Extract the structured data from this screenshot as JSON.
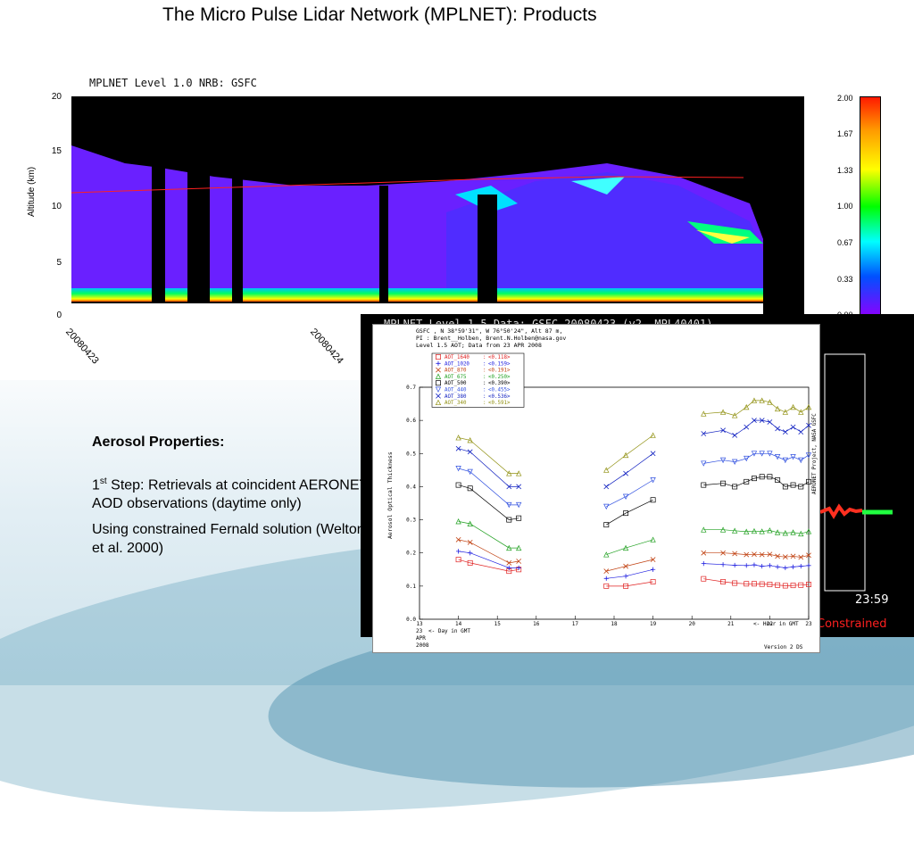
{
  "slide": {
    "title": "The Micro Pulse Lidar Network (MPLNET): Products",
    "bullets": {
      "heading": "Aerosol Properties:",
      "step_num": "1",
      "step_sup": "st",
      "step_text": "Step: Retrievals at coincident AERONET AOD observations (daytime only)",
      "method_text": "Using constrained Fernald solution (Welton et al. 2000)"
    }
  },
  "nrb_figure": {
    "heading": "MPLNET Level 1.0 NRB: GSFC",
    "ylabel": "Altitude (km)",
    "yticks": [
      "20",
      "15",
      "10",
      "5",
      "0"
    ],
    "xdates": [
      "20080423",
      "20080424"
    ],
    "colorbar_ticks": [
      "2.00",
      "1.67",
      "1.33",
      "1.00",
      "0.67",
      "0.33",
      "0.00"
    ]
  },
  "level15_panel": {
    "heading": "MPLNET Level 1.5 Data: GSFC 20080423 (v2, MPL40401)",
    "time_label": "23:59",
    "constrained_label": "Constrained"
  },
  "chart_data": {
    "type": "line",
    "header_lines": [
      "GSFC , N 38°59'31\", W 76°50'24\", Alt 87 m,",
      "PI : Brent__Holben, Brent.N.Holben@nasa.gov",
      "Level 1.5 AOT; Data from 23 APR 2008"
    ],
    "ylabel": "Aerosol Optical Thickness",
    "xlabel": "<- Hour in GMT",
    "day_label": "<- Day in GMT",
    "day_lines": [
      "23",
      "APR",
      "2008"
    ],
    "right_label": "AERONET Project, NASA GSFC",
    "version_label": "Version 2 DS",
    "ylim": [
      0,
      0.7
    ],
    "yticks": [
      "0.0",
      "0.1",
      "0.2",
      "0.3",
      "0.4",
      "0.5",
      "0.6",
      "0.7"
    ],
    "xlim": [
      13,
      23
    ],
    "xticks": [
      "13",
      "14",
      "15",
      "16",
      "17",
      "18",
      "19",
      "20",
      "21",
      "22",
      "23"
    ],
    "series": [
      {
        "name": "AOT_1640",
        "mean": "<0.118>",
        "color": "#e02020",
        "marker": "square",
        "segments": [
          [
            [
              14,
              0.18
            ],
            [
              14.3,
              0.17
            ],
            [
              15.3,
              0.145
            ],
            [
              15.55,
              0.15
            ]
          ],
          [
            [
              17.8,
              0.1
            ],
            [
              18.3,
              0.1
            ],
            [
              19,
              0.113
            ]
          ],
          [
            [
              20.3,
              0.122
            ],
            [
              20.8,
              0.113
            ],
            [
              21.1,
              0.109
            ],
            [
              21.4,
              0.107
            ],
            [
              21.6,
              0.107
            ],
            [
              21.8,
              0.106
            ],
            [
              22,
              0.105
            ],
            [
              22.2,
              0.103
            ],
            [
              22.4,
              0.101
            ],
            [
              22.6,
              0.102
            ],
            [
              22.8,
              0.103
            ],
            [
              23,
              0.105
            ]
          ]
        ]
      },
      {
        "name": "AOT_1020",
        "mean": "<0.159>",
        "color": "#2020e0",
        "marker": "cross",
        "segments": [
          [
            [
              14,
              0.205
            ],
            [
              14.3,
              0.2
            ],
            [
              15.3,
              0.155
            ],
            [
              15.55,
              0.155
            ]
          ],
          [
            [
              17.8,
              0.123
            ],
            [
              18.3,
              0.13
            ],
            [
              19,
              0.15
            ]
          ],
          [
            [
              20.3,
              0.168
            ],
            [
              20.8,
              0.165
            ],
            [
              21.1,
              0.163
            ],
            [
              21.4,
              0.162
            ],
            [
              21.6,
              0.164
            ],
            [
              21.8,
              0.16
            ],
            [
              22,
              0.162
            ],
            [
              22.2,
              0.158
            ],
            [
              22.4,
              0.155
            ],
            [
              22.6,
              0.158
            ],
            [
              22.8,
              0.16
            ],
            [
              23,
              0.162
            ]
          ]
        ]
      },
      {
        "name": "AOT_870",
        "mean": "<0.191>",
        "color": "#c04010",
        "marker": "x",
        "segments": [
          [
            [
              14,
              0.24
            ],
            [
              14.3,
              0.232
            ],
            [
              15.3,
              0.17
            ],
            [
              15.55,
              0.175
            ]
          ],
          [
            [
              17.8,
              0.145
            ],
            [
              18.3,
              0.16
            ],
            [
              19,
              0.18
            ]
          ],
          [
            [
              20.3,
              0.2
            ],
            [
              20.8,
              0.2
            ],
            [
              21.1,
              0.198
            ],
            [
              21.4,
              0.195
            ],
            [
              21.6,
              0.196
            ],
            [
              21.8,
              0.195
            ],
            [
              22,
              0.196
            ],
            [
              22.2,
              0.19
            ],
            [
              22.4,
              0.188
            ],
            [
              22.6,
              0.19
            ],
            [
              22.8,
              0.187
            ],
            [
              23,
              0.193
            ]
          ]
        ]
      },
      {
        "name": "AOT_675",
        "mean": "<0.250>",
        "color": "#20a020",
        "marker": "triangle",
        "segments": [
          [
            [
              14,
              0.295
            ],
            [
              14.3,
              0.288
            ],
            [
              15.3,
              0.215
            ],
            [
              15.55,
              0.215
            ]
          ],
          [
            [
              17.8,
              0.195
            ],
            [
              18.3,
              0.215
            ],
            [
              19,
              0.24
            ]
          ],
          [
            [
              20.3,
              0.27
            ],
            [
              20.8,
              0.27
            ],
            [
              21.1,
              0.267
            ],
            [
              21.4,
              0.264
            ],
            [
              21.6,
              0.266
            ],
            [
              21.8,
              0.265
            ],
            [
              22,
              0.268
            ],
            [
              22.2,
              0.262
            ],
            [
              22.4,
              0.26
            ],
            [
              22.6,
              0.262
            ],
            [
              22.8,
              0.258
            ],
            [
              23,
              0.265
            ]
          ]
        ]
      },
      {
        "name": "AOT_500",
        "mean": "<0.390>",
        "color": "#000000",
        "marker": "square",
        "segments": [
          [
            [
              14,
              0.405
            ],
            [
              14.3,
              0.395
            ],
            [
              15.3,
              0.3
            ],
            [
              15.55,
              0.305
            ]
          ],
          [
            [
              17.8,
              0.285
            ],
            [
              18.3,
              0.32
            ],
            [
              19,
              0.36
            ]
          ],
          [
            [
              20.3,
              0.405
            ],
            [
              20.8,
              0.41
            ],
            [
              21.1,
              0.4
            ],
            [
              21.4,
              0.415
            ],
            [
              21.6,
              0.425
            ],
            [
              21.8,
              0.43
            ],
            [
              22,
              0.43
            ],
            [
              22.2,
              0.42
            ],
            [
              22.4,
              0.4
            ],
            [
              22.6,
              0.405
            ],
            [
              22.8,
              0.4
            ],
            [
              23,
              0.415
            ]
          ]
        ]
      },
      {
        "name": "AOT_440",
        "mean": "<0.455>",
        "color": "#3050e0",
        "marker": "triangle-down",
        "segments": [
          [
            [
              14,
              0.455
            ],
            [
              14.3,
              0.445
            ],
            [
              15.3,
              0.345
            ],
            [
              15.55,
              0.345
            ]
          ],
          [
            [
              17.8,
              0.34
            ],
            [
              18.3,
              0.37
            ],
            [
              19,
              0.42
            ]
          ],
          [
            [
              20.3,
              0.47
            ],
            [
              20.8,
              0.48
            ],
            [
              21.1,
              0.475
            ],
            [
              21.4,
              0.485
            ],
            [
              21.6,
              0.5
            ],
            [
              21.8,
              0.5
            ],
            [
              22,
              0.5
            ],
            [
              22.2,
              0.49
            ],
            [
              22.4,
              0.48
            ],
            [
              22.6,
              0.49
            ],
            [
              22.8,
              0.48
            ],
            [
              23,
              0.495
            ]
          ]
        ]
      },
      {
        "name": "AOT_380",
        "mean": "<0.536>",
        "color": "#1020c0",
        "marker": "x",
        "segments": [
          [
            [
              14,
              0.515
            ],
            [
              14.3,
              0.505
            ],
            [
              15.3,
              0.4
            ],
            [
              15.55,
              0.4
            ]
          ],
          [
            [
              17.8,
              0.4
            ],
            [
              18.3,
              0.44
            ],
            [
              19,
              0.5
            ]
          ],
          [
            [
              20.3,
              0.56
            ],
            [
              20.8,
              0.57
            ],
            [
              21.1,
              0.555
            ],
            [
              21.4,
              0.58
            ],
            [
              21.6,
              0.6
            ],
            [
              21.8,
              0.6
            ],
            [
              22,
              0.595
            ],
            [
              22.2,
              0.575
            ],
            [
              22.4,
              0.565
            ],
            [
              22.6,
              0.58
            ],
            [
              22.8,
              0.565
            ],
            [
              23,
              0.585
            ]
          ]
        ]
      },
      {
        "name": "AOT_340",
        "mean": "<0.591>",
        "color": "#909010",
        "marker": "triangle",
        "segments": [
          [
            [
              14,
              0.548
            ],
            [
              14.3,
              0.54
            ],
            [
              15.3,
              0.44
            ],
            [
              15.55,
              0.44
            ]
          ],
          [
            [
              17.8,
              0.45
            ],
            [
              18.3,
              0.495
            ],
            [
              19,
              0.555
            ]
          ],
          [
            [
              20.3,
              0.62
            ],
            [
              20.8,
              0.625
            ],
            [
              21.1,
              0.615
            ],
            [
              21.4,
              0.64
            ],
            [
              21.6,
              0.66
            ],
            [
              21.8,
              0.66
            ],
            [
              22,
              0.655
            ],
            [
              22.2,
              0.635
            ],
            [
              22.4,
              0.625
            ],
            [
              22.6,
              0.64
            ],
            [
              22.8,
              0.625
            ],
            [
              23,
              0.64
            ]
          ]
        ]
      }
    ]
  }
}
